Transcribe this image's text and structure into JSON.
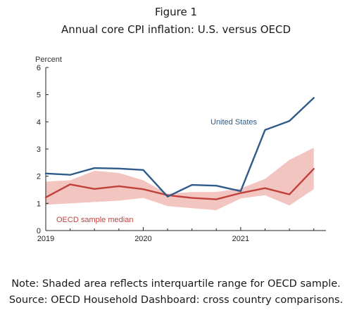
{
  "figure_label": "Figure 1",
  "chart_data": {
    "type": "line",
    "title": "Annual core CPI inflation: U.S. versus OECD",
    "ylabel": "Percent",
    "xlabel": "",
    "ylim": [
      0,
      6
    ],
    "yticks": [
      "0",
      "1",
      "2",
      "3",
      "4",
      "5",
      "6"
    ],
    "xlim": [
      2019.0,
      2021.875
    ],
    "xticks": [
      {
        "value": 2019,
        "label": "2019"
      },
      {
        "value": 2020,
        "label": "2020"
      },
      {
        "value": 2021,
        "label": "2021"
      }
    ],
    "x": [
      2019.0,
      2019.25,
      2019.5,
      2019.75,
      2020.0,
      2020.25,
      2020.5,
      2020.75,
      2021.0,
      2021.25,
      2021.5,
      2021.75
    ],
    "series": [
      {
        "name": "United States",
        "color": "#2f5b8a",
        "values": [
          2.1,
          2.05,
          2.3,
          2.28,
          2.23,
          1.25,
          1.68,
          1.65,
          1.45,
          3.7,
          4.03,
          4.88
        ]
      },
      {
        "name": "OECD sample median",
        "color": "#c0413b",
        "values": [
          1.22,
          1.7,
          1.53,
          1.63,
          1.52,
          1.3,
          1.2,
          1.15,
          1.38,
          1.56,
          1.33,
          2.27
        ]
      }
    ],
    "band": {
      "description": "Interquartile range for OECD sample",
      "color": "#f3c5c1",
      "upper": [
        1.8,
        1.85,
        2.2,
        2.12,
        1.85,
        1.35,
        1.42,
        1.42,
        1.55,
        1.9,
        2.6,
        3.05
      ],
      "lower": [
        0.95,
        1.0,
        1.05,
        1.1,
        1.2,
        0.9,
        0.82,
        0.75,
        1.18,
        1.3,
        0.92,
        1.52
      ]
    },
    "annotations": [
      {
        "text": "United States",
        "color": "#2f5b8a"
      },
      {
        "text": "OECD sample median",
        "color": "#c0413b"
      }
    ],
    "grid": false
  },
  "note": "Note: Shaded area reflects interquartile range for OECD sample.",
  "source": "Source: OECD Household Dashboard: cross country comparisons."
}
